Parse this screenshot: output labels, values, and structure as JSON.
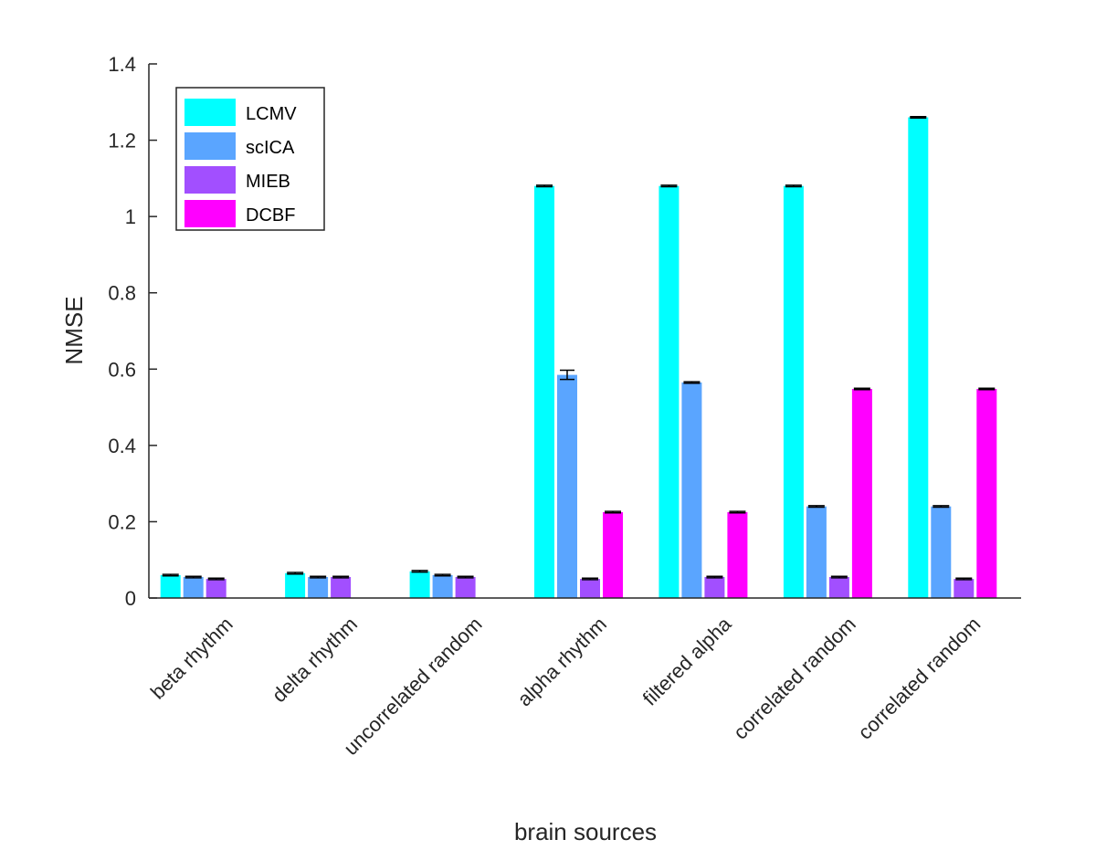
{
  "chart_data": {
    "type": "bar",
    "title": "",
    "xlabel": "brain sources",
    "ylabel": "NMSE",
    "ylim": [
      0,
      1.4
    ],
    "yticks": [
      "0",
      "0.2",
      "0.4",
      "0.6",
      "0.8",
      "1",
      "1.2",
      "1.4"
    ],
    "categories": [
      "beta rhythm",
      "delta rhythm",
      "uncorrelated random",
      "alpha rhythm",
      "filtered alpha",
      "correlated random",
      "correlated random"
    ],
    "legend_position": "top-left",
    "grid": false,
    "series": [
      {
        "name": "LCMV",
        "color": "#00FFFF",
        "values": [
          0.06,
          0.065,
          0.07,
          1.08,
          1.08,
          1.08,
          1.26
        ],
        "errors": [
          0.002,
          0.002,
          0.002,
          0.002,
          0.002,
          0.002,
          0.002
        ]
      },
      {
        "name": "scICA",
        "color": "#5AA5FF",
        "values": [
          0.055,
          0.055,
          0.06,
          0.585,
          0.565,
          0.24,
          0.24
        ],
        "errors": [
          0.002,
          0.002,
          0.002,
          0.012,
          0.002,
          0.002,
          0.002
        ]
      },
      {
        "name": "MIEB",
        "color": "#A24FFF",
        "values": [
          0.05,
          0.055,
          0.055,
          0.05,
          0.055,
          0.055,
          0.05
        ],
        "errors": [
          0.002,
          0.002,
          0.002,
          0.002,
          0.002,
          0.002,
          0.002
        ]
      },
      {
        "name": "DCBF",
        "color": "#FF00FF",
        "values": [
          0,
          0,
          0,
          0.225,
          0.225,
          0.548,
          0.548
        ],
        "errors": [
          0,
          0,
          0,
          0.002,
          0.002,
          0.002,
          0.002
        ]
      }
    ]
  }
}
